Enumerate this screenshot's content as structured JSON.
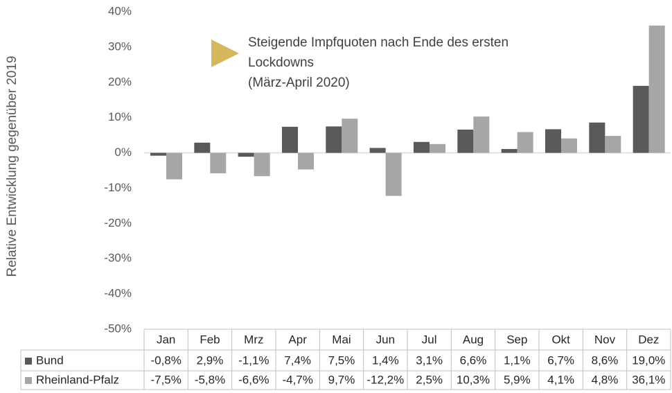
{
  "chart_data": {
    "type": "bar",
    "y_axis_label": "Relative Entwicklung gegenüber 2019",
    "annotation": [
      "Steigende Impfquoten nach Ende des ersten",
      "Lockdowns",
      "(März-April 2020)"
    ],
    "annotation_color": "#d4b85a",
    "categories": [
      "Jan",
      "Feb",
      "Mrz",
      "Apr",
      "Mai",
      "Jun",
      "Jul",
      "Aug",
      "Sep",
      "Okt",
      "Nov",
      "Dez"
    ],
    "series": [
      {
        "name": "Bund",
        "color": "#595959",
        "values": [
          -0.8,
          2.9,
          -1.1,
          7.4,
          7.5,
          1.4,
          3.1,
          6.6,
          1.1,
          6.7,
          8.6,
          19.0
        ],
        "value_labels": [
          "-0,8%",
          "2,9%",
          "-1,1%",
          "7,4%",
          "7,5%",
          "1,4%",
          "3,1%",
          "6,6%",
          "1,1%",
          "6,7%",
          "8,6%",
          "19,0%"
        ]
      },
      {
        "name": "Rheinland-Pfalz",
        "color": "#a6a6a6",
        "values": [
          -7.5,
          -5.8,
          -6.6,
          -4.7,
          9.7,
          -12.2,
          2.5,
          10.3,
          5.9,
          4.1,
          4.8,
          36.1
        ],
        "value_labels": [
          "-7,5%",
          "-5,8%",
          "-6,6%",
          "-4,7%",
          "9,7%",
          "-12,2%",
          "2,5%",
          "10,3%",
          "5,9%",
          "4,1%",
          "4,8%",
          "36,1%"
        ]
      }
    ],
    "ylim": [
      -50,
      40
    ],
    "yticks": [
      {
        "value": -50,
        "label": "-50%"
      },
      {
        "value": -40,
        "label": "-40%"
      },
      {
        "value": -30,
        "label": "-30%"
      },
      {
        "value": -20,
        "label": "-20%"
      },
      {
        "value": -10,
        "label": "-10%"
      },
      {
        "value": 0,
        "label": "0%"
      },
      {
        "value": 10,
        "label": "10%"
      },
      {
        "value": 20,
        "label": "20%"
      },
      {
        "value": 30,
        "label": "30%"
      },
      {
        "value": 40,
        "label": "40%"
      }
    ]
  }
}
